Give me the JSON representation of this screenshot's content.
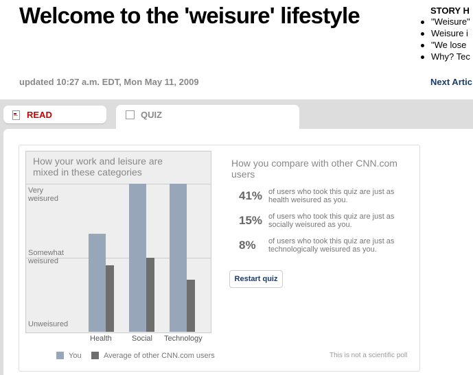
{
  "header": {
    "title": "Welcome to the 'weisure' lifestyle",
    "updated": "updated 10:27 a.m. EDT, Mon May 11, 2009"
  },
  "story": {
    "heading": "STORY H",
    "items": [
      "\"Weisure\"",
      "Weisure i",
      "\"We lose",
      "Why? Tec"
    ],
    "next": "Next Artic"
  },
  "tabs": {
    "read": "READ",
    "quiz": "QUIZ"
  },
  "chart_data": {
    "type": "bar",
    "title": "How your work and leisure are mixed in these categories",
    "categories": [
      "Health",
      "Social",
      "Technology"
    ],
    "y_tick_labels": [
      "Very weisured",
      "Somewhat weisured",
      "Unweisured"
    ],
    "ylim": [
      0,
      100
    ],
    "series": [
      {
        "name": "You",
        "color": "#97a6b8",
        "values": [
          66,
          100,
          100
        ]
      },
      {
        "name": "Average of other CNN.com users",
        "color": "#6e6e6e",
        "values": [
          45,
          50,
          35
        ]
      }
    ],
    "note": "This is not a scientific poll"
  },
  "compare": {
    "title": "How you compare with other CNN.com users",
    "rows": [
      {
        "pct": "41%",
        "text": "of users who took this quiz are just as health weisured as you."
      },
      {
        "pct": "15%",
        "text": "of users who took this quiz are just as socially weisured as you."
      },
      {
        "pct": "8%",
        "text": "of users who took this quiz are just as technologically weisured as you."
      }
    ],
    "restart": "Restart quiz"
  }
}
